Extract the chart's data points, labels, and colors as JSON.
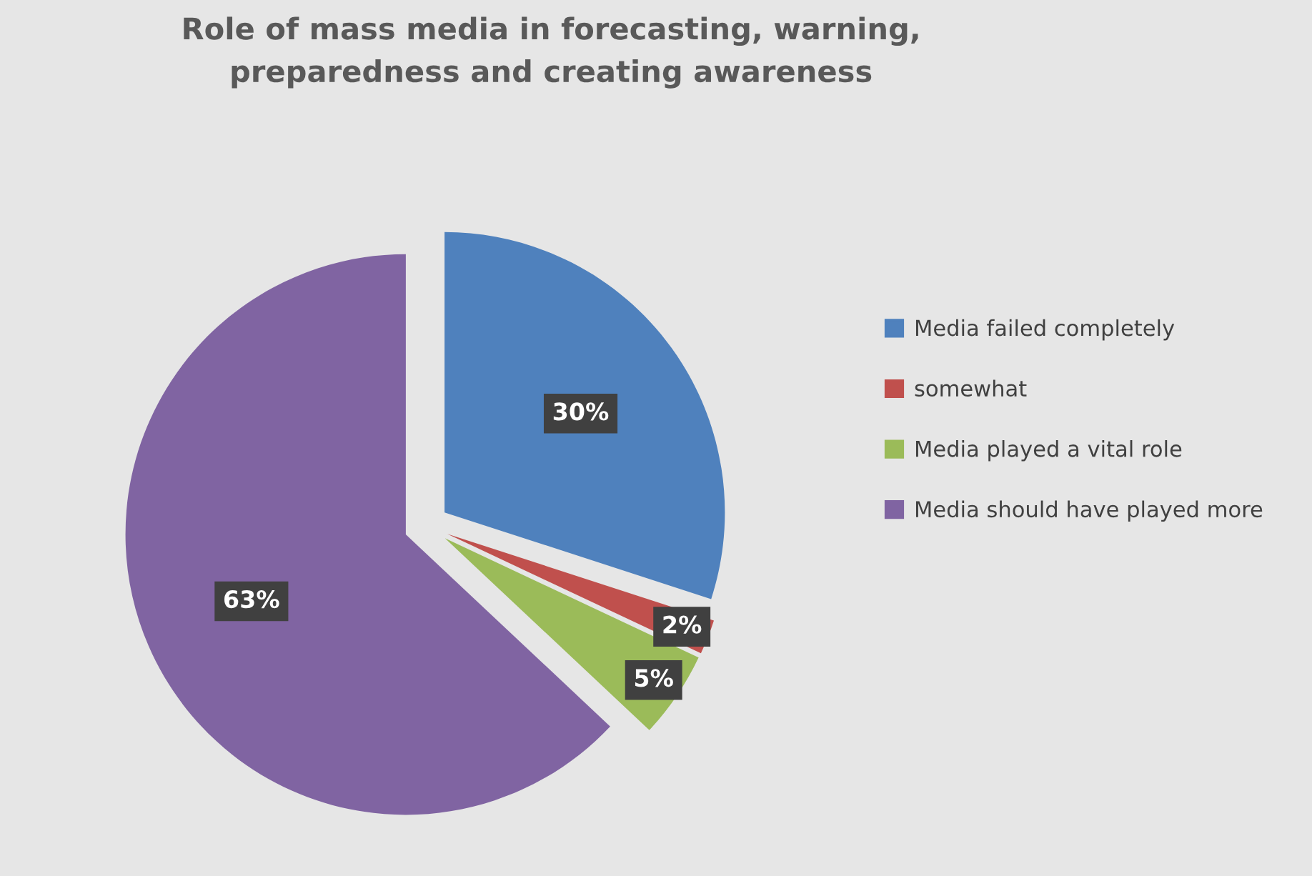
{
  "chart_data": {
    "type": "pie",
    "title": "Role of mass media in forecasting, warning,\npreparedness and creating awareness",
    "categories": [
      "Media failed completely",
      "somewhat",
      "Media played a vital role",
      "Media should have played more"
    ],
    "values": [
      30,
      2,
      5,
      63
    ],
    "colors": [
      "#4f81bd",
      "#c0504d",
      "#9bbb59",
      "#8064a2"
    ],
    "value_labels": [
      "30%",
      "2%",
      "5%",
      "63%"
    ],
    "legend": "right"
  }
}
